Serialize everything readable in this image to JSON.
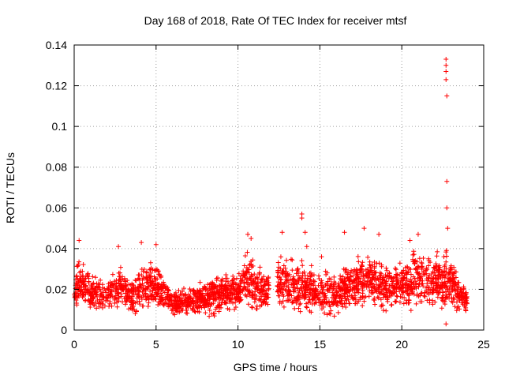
{
  "chart_data": {
    "type": "scatter",
    "title": "Day 168 of 2018, Rate Of TEC Index for receiver mtsf",
    "xlabel": "GPS time / hours",
    "ylabel": "ROTI / TECUs",
    "xlim": [
      0,
      25
    ],
    "ylim": [
      0,
      0.14
    ],
    "xticks": [
      0,
      5,
      10,
      15,
      20,
      25
    ],
    "yticks": [
      0,
      0.02,
      0.04,
      0.06,
      0.08,
      0.1,
      0.12,
      0.14
    ],
    "xtick_labels": [
      "0",
      "5",
      "10",
      "15",
      "20",
      "25"
    ],
    "ytick_labels": [
      "0",
      "0.02",
      "0.04",
      "0.06",
      "0.08",
      "0.1",
      "0.12",
      "0.14"
    ],
    "grid": true,
    "marker": "+",
    "color": "#ff0000",
    "gap_hours": [
      11.9,
      12.4
    ],
    "baseline_profile": [
      {
        "x": 0.0,
        "low": 0.007,
        "high": 0.025
      },
      {
        "x": 0.3,
        "low": 0.008,
        "high": 0.04
      },
      {
        "x": 1.0,
        "low": 0.008,
        "high": 0.028
      },
      {
        "x": 2.0,
        "low": 0.007,
        "high": 0.027
      },
      {
        "x": 2.8,
        "low": 0.008,
        "high": 0.035
      },
      {
        "x": 3.5,
        "low": 0.006,
        "high": 0.025
      },
      {
        "x": 4.2,
        "low": 0.007,
        "high": 0.034
      },
      {
        "x": 5.0,
        "low": 0.008,
        "high": 0.036
      },
      {
        "x": 6.0,
        "low": 0.006,
        "high": 0.02
      },
      {
        "x": 7.0,
        "low": 0.005,
        "high": 0.022
      },
      {
        "x": 8.0,
        "low": 0.006,
        "high": 0.025
      },
      {
        "x": 9.0,
        "low": 0.006,
        "high": 0.03
      },
      {
        "x": 10.0,
        "low": 0.007,
        "high": 0.03
      },
      {
        "x": 10.5,
        "low": 0.008,
        "high": 0.042
      },
      {
        "x": 11.5,
        "low": 0.006,
        "high": 0.03
      },
      {
        "x": 12.6,
        "low": 0.008,
        "high": 0.04
      },
      {
        "x": 14.0,
        "low": 0.006,
        "high": 0.035
      },
      {
        "x": 15.0,
        "low": 0.005,
        "high": 0.03
      },
      {
        "x": 16.0,
        "low": 0.005,
        "high": 0.03
      },
      {
        "x": 17.0,
        "low": 0.007,
        "high": 0.035
      },
      {
        "x": 18.0,
        "low": 0.008,
        "high": 0.04
      },
      {
        "x": 19.0,
        "low": 0.006,
        "high": 0.035
      },
      {
        "x": 20.0,
        "low": 0.007,
        "high": 0.035
      },
      {
        "x": 21.0,
        "low": 0.008,
        "high": 0.04
      },
      {
        "x": 22.0,
        "low": 0.007,
        "high": 0.038
      },
      {
        "x": 22.8,
        "low": 0.004,
        "high": 0.045
      },
      {
        "x": 23.5,
        "low": 0.006,
        "high": 0.028
      },
      {
        "x": 24.0,
        "low": 0.007,
        "high": 0.02
      }
    ],
    "notable_points": [
      {
        "x": 0.3,
        "y": 0.044
      },
      {
        "x": 2.7,
        "y": 0.041
      },
      {
        "x": 4.1,
        "y": 0.043
      },
      {
        "x": 5.0,
        "y": 0.042
      },
      {
        "x": 10.6,
        "y": 0.047
      },
      {
        "x": 10.8,
        "y": 0.045
      },
      {
        "x": 12.7,
        "y": 0.048
      },
      {
        "x": 13.9,
        "y": 0.057
      },
      {
        "x": 13.9,
        "y": 0.055
      },
      {
        "x": 14.1,
        "y": 0.048
      },
      {
        "x": 14.2,
        "y": 0.041
      },
      {
        "x": 15.1,
        "y": 0.036
      },
      {
        "x": 16.5,
        "y": 0.048
      },
      {
        "x": 17.7,
        "y": 0.05
      },
      {
        "x": 18.6,
        "y": 0.047
      },
      {
        "x": 20.5,
        "y": 0.044
      },
      {
        "x": 21.0,
        "y": 0.047
      },
      {
        "x": 22.7,
        "y": 0.133
      },
      {
        "x": 22.7,
        "y": 0.13
      },
      {
        "x": 22.7,
        "y": 0.127
      },
      {
        "x": 22.7,
        "y": 0.123
      },
      {
        "x": 22.75,
        "y": 0.115
      },
      {
        "x": 22.75,
        "y": 0.073
      },
      {
        "x": 22.75,
        "y": 0.06
      },
      {
        "x": 22.8,
        "y": 0.05
      },
      {
        "x": 22.7,
        "y": 0.003
      }
    ]
  }
}
